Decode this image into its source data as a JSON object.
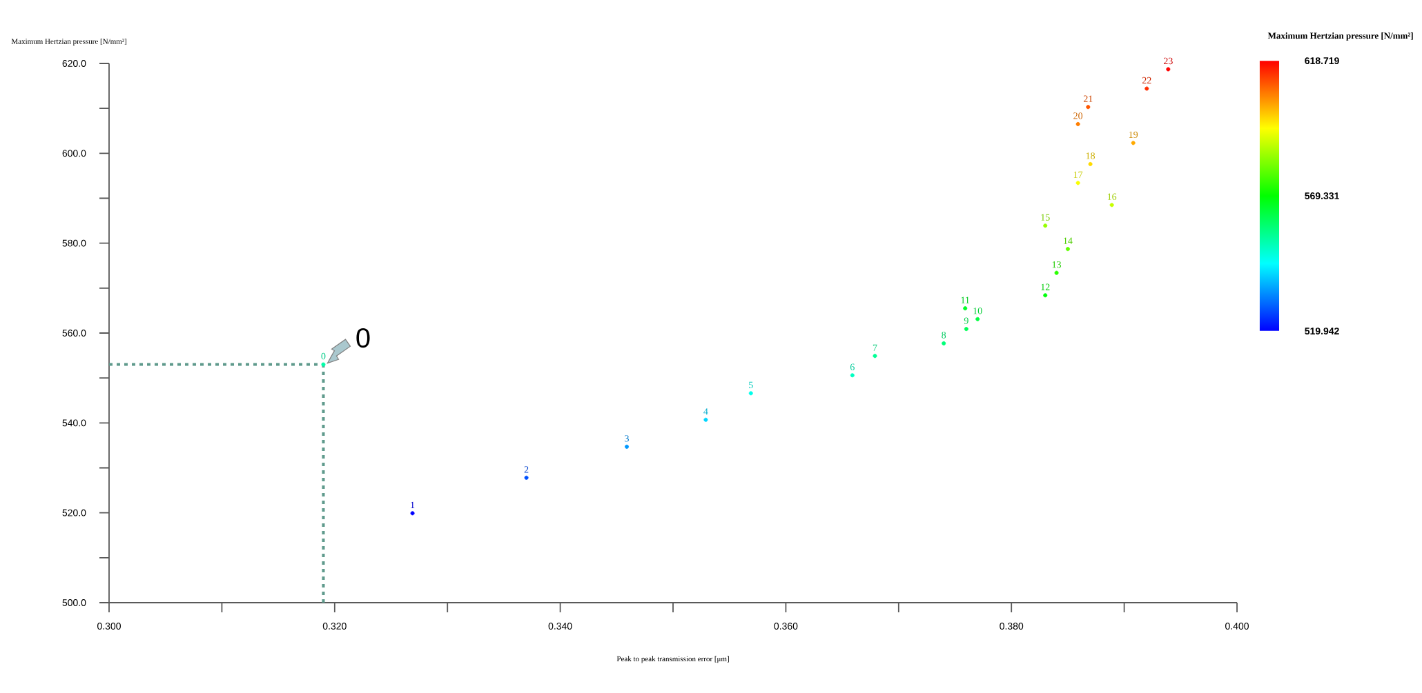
{
  "chart_data": {
    "type": "scatter",
    "xlabel": "Peak to peak transmission error [μm]",
    "ylabel": "Maximum Hertzian pressure [N/mm²]",
    "clabel": "Maximum Hertzian pressure [N/mm²]",
    "x": [
      0.319,
      0.3269,
      0.337,
      0.3459,
      0.3529,
      0.3569,
      0.3659,
      0.3679,
      0.374,
      0.376,
      0.377,
      0.3759,
      0.383,
      0.384,
      0.385,
      0.383,
      0.3889,
      0.3859,
      0.387,
      0.3908,
      0.3859,
      0.3868,
      0.392,
      0.3939
    ],
    "values": [
      553.0,
      519.9,
      527.8,
      534.7,
      540.7,
      546.6,
      550.6,
      554.9,
      557.7,
      560.9,
      563.1,
      565.5,
      568.4,
      573.4,
      578.7,
      583.9,
      588.5,
      593.4,
      597.6,
      602.3,
      606.5,
      610.3,
      614.4,
      618.7
    ],
    "cvalues": [
      553.0,
      519.9,
      527.8,
      534.7,
      540.7,
      546.6,
      550.6,
      554.9,
      557.7,
      560.9,
      563.1,
      565.5,
      568.4,
      573.4,
      578.7,
      583.9,
      588.5,
      593.4,
      597.6,
      602.3,
      606.5,
      610.3,
      614.4,
      618.7
    ],
    "marker": "circle",
    "clim": [
      519.942,
      618.719
    ],
    "cticks": [
      519.942,
      569.331,
      618.719
    ],
    "xlim": [
      0.3,
      0.4
    ],
    "xticks": [
      {
        "value": 0.3,
        "label": "0.300"
      },
      {
        "value": 0.31,
        "label": null
      },
      {
        "value": 0.32,
        "label": "0.320"
      },
      {
        "value": 0.33,
        "label": null
      },
      {
        "value": 0.34,
        "label": "0.340"
      },
      {
        "value": 0.35,
        "label": null
      },
      {
        "value": 0.36,
        "label": "0.360"
      },
      {
        "value": 0.37,
        "label": null
      },
      {
        "value": 0.38,
        "label": "0.380"
      },
      {
        "value": 0.39,
        "label": null
      },
      {
        "value": 0.4,
        "label": "0.400"
      }
    ],
    "ylim": [
      500,
      620
    ],
    "yticks": [
      {
        "value": 500,
        "label": "500.0"
      },
      {
        "value": 510,
        "label": null
      },
      {
        "value": 520,
        "label": "520.0"
      },
      {
        "value": 530,
        "label": null
      },
      {
        "value": 540,
        "label": "540.0"
      },
      {
        "value": 550,
        "label": null
      },
      {
        "value": 560,
        "label": "560.0"
      },
      {
        "value": 570,
        "label": null
      },
      {
        "value": 580,
        "label": "580.0"
      },
      {
        "value": 590,
        "label": null
      },
      {
        "value": 600,
        "label": "600.0"
      },
      {
        "value": 610,
        "label": null
      },
      {
        "value": 620,
        "label": "620.0"
      }
    ],
    "ref_lines": [
      {
        "axis": "x",
        "value": 0.319,
        "color": "#5f9a8c",
        "line_style": "dotted"
      },
      {
        "axis": "y",
        "value": 553.0,
        "color": "#5f9a8c",
        "line_style": "dotted"
      }
    ],
    "annotations": [
      {
        "text": "0",
        "x": 0.319,
        "y": 553.0
      },
      {
        "text": "1",
        "x": 0.3269,
        "y": 519.9
      },
      {
        "text": "2",
        "x": 0.337,
        "y": 527.8
      },
      {
        "text": "3",
        "x": 0.3459,
        "y": 534.7
      },
      {
        "text": "4",
        "x": 0.3529,
        "y": 540.7
      },
      {
        "text": "5",
        "x": 0.3569,
        "y": 546.6
      },
      {
        "text": "6",
        "x": 0.3659,
        "y": 550.6
      },
      {
        "text": "7",
        "x": 0.3679,
        "y": 554.9
      },
      {
        "text": "8",
        "x": 0.374,
        "y": 557.7
      },
      {
        "text": "9",
        "x": 0.376,
        "y": 560.9
      },
      {
        "text": "10",
        "x": 0.377,
        "y": 563.1
      },
      {
        "text": "11",
        "x": 0.3759,
        "y": 565.5
      },
      {
        "text": "12",
        "x": 0.383,
        "y": 568.4
      },
      {
        "text": "13",
        "x": 0.384,
        "y": 573.4
      },
      {
        "text": "14",
        "x": 0.385,
        "y": 578.7
      },
      {
        "text": "15",
        "x": 0.383,
        "y": 583.9
      },
      {
        "text": "16",
        "x": 0.3889,
        "y": 588.5
      },
      {
        "text": "17",
        "x": 0.3859,
        "y": 593.4
      },
      {
        "text": "18",
        "x": 0.387,
        "y": 597.6
      },
      {
        "text": "19",
        "x": 0.3908,
        "y": 602.3
      },
      {
        "text": "20",
        "x": 0.3859,
        "y": 606.5
      },
      {
        "text": "21",
        "x": 0.3868,
        "y": 610.3
      },
      {
        "text": "22",
        "x": 0.392,
        "y": 614.4
      },
      {
        "text": "23",
        "x": 0.3939,
        "y": 618.7
      },
      {
        "text": "0",
        "x": 0.319,
        "y": 553.0
      }
    ],
    "grid": false
  }
}
